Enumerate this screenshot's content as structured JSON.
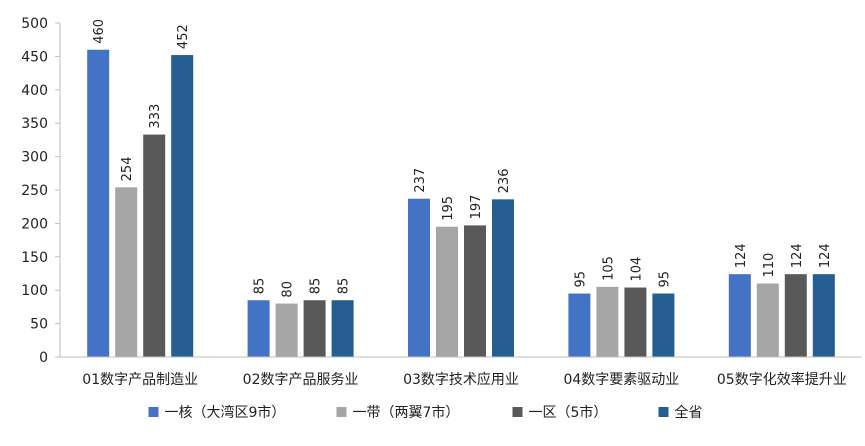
{
  "chart_data": {
    "type": "bar",
    "categories": [
      "01数字产品制造业",
      "02数字产品服务业",
      "03数字技术应用业",
      "04数字要素驱动业",
      "05数字化效率提升业"
    ],
    "series": [
      {
        "name": "一核（大湾区9市）",
        "color": "#4472C4",
        "values": [
          460,
          85,
          237,
          95,
          124
        ]
      },
      {
        "name": "一带（两翼7市）",
        "color": "#A5A5A5",
        "values": [
          254,
          80,
          195,
          105,
          110
        ]
      },
      {
        "name": "一区（5市）",
        "color": "#595959",
        "values": [
          333,
          85,
          197,
          104,
          124
        ]
      },
      {
        "name": "全省",
        "color": "#255E91",
        "values": [
          452,
          85,
          236,
          95,
          124
        ]
      }
    ],
    "ylim": [
      0,
      500
    ],
    "yticks": [
      0,
      50,
      100,
      150,
      200,
      250,
      300,
      350,
      400,
      450,
      500
    ],
    "grid": false,
    "legend_position": "bottom",
    "title": "",
    "xlabel": "",
    "ylabel": ""
  }
}
